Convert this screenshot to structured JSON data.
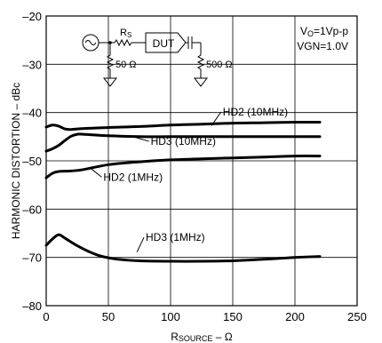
{
  "chart_data": {
    "type": "line",
    "xlabel_main": "R",
    "xlabel_sub": "SOURCE",
    "xlabel_tail": " – Ω",
    "ylabel": "HARMONIC DISTORTION – dBc",
    "xlim": [
      0,
      250
    ],
    "ylim": [
      -80,
      -20
    ],
    "xticks": [
      0,
      50,
      100,
      150,
      200,
      250
    ],
    "yticks": [
      -20,
      -30,
      -40,
      -50,
      -60,
      -70,
      -80
    ],
    "grid": true,
    "series": [
      {
        "name": "HD2 (10MHz)",
        "points": [
          [
            0,
            -43
          ],
          [
            5,
            -42.6
          ],
          [
            10,
            -42.8
          ],
          [
            15,
            -43.4
          ],
          [
            20,
            -43.5
          ],
          [
            30,
            -43.3
          ],
          [
            50,
            -43.1
          ],
          [
            75,
            -42.9
          ],
          [
            100,
            -42.6
          ],
          [
            125,
            -42.4
          ],
          [
            150,
            -42.2
          ],
          [
            175,
            -42.1
          ],
          [
            200,
            -42.0
          ],
          [
            220,
            -42.0
          ]
        ]
      },
      {
        "name": "HD3 (10MHz)",
        "points": [
          [
            0,
            -48
          ],
          [
            5,
            -47.5
          ],
          [
            10,
            -46.8
          ],
          [
            15,
            -45.8
          ],
          [
            20,
            -44.9
          ],
          [
            25,
            -44.5
          ],
          [
            30,
            -44.5
          ],
          [
            50,
            -44.8
          ],
          [
            75,
            -45.0
          ],
          [
            100,
            -45.0
          ],
          [
            150,
            -45.0
          ],
          [
            200,
            -45.0
          ],
          [
            220,
            -45.0
          ]
        ]
      },
      {
        "name": "HD2 (1MHz)",
        "points": [
          [
            0,
            -53.5
          ],
          [
            5,
            -52.6
          ],
          [
            10,
            -52.2
          ],
          [
            20,
            -52.1
          ],
          [
            30,
            -51.8
          ],
          [
            50,
            -50.8
          ],
          [
            75,
            -50.2
          ],
          [
            100,
            -49.8
          ],
          [
            125,
            -49.6
          ],
          [
            150,
            -49.4
          ],
          [
            175,
            -49.2
          ],
          [
            200,
            -49.0
          ],
          [
            220,
            -49.0
          ]
        ]
      },
      {
        "name": "HD3 (1MHz)",
        "points": [
          [
            0,
            -67.5
          ],
          [
            5,
            -66.2
          ],
          [
            10,
            -65.3
          ],
          [
            15,
            -66.0
          ],
          [
            25,
            -67.6
          ],
          [
            40,
            -69.4
          ],
          [
            55,
            -70.3
          ],
          [
            75,
            -70.7
          ],
          [
            100,
            -70.8
          ],
          [
            125,
            -70.8
          ],
          [
            150,
            -70.7
          ],
          [
            175,
            -70.4
          ],
          [
            200,
            -70.0
          ],
          [
            220,
            -69.8
          ]
        ]
      }
    ],
    "annotations": [
      {
        "text": "HD2 (10MHz)",
        "at": [
          142,
          -40.6
        ],
        "arrow_to": [
          133,
          -42.7
        ]
      },
      {
        "text": "HD3 (10MHz)",
        "at": [
          84,
          -46.7
        ],
        "arrow_to": [
          70,
          -45.0
        ]
      },
      {
        "text": "HD2 (1MHz)",
        "at": [
          46,
          -54.1
        ],
        "arrow_to": [
          36,
          -51.6
        ]
      },
      {
        "text": "HD3 (1MHz)",
        "at": [
          80,
          -66.6
        ],
        "arrow_to": [
          73,
          -68.9
        ]
      }
    ],
    "conditions": {
      "line1_main": "V",
      "line1_sub": "O",
      "line1_tail": "=1Vp-p",
      "line2": "VGN=1.0V"
    },
    "schematic": {
      "rs_main": "R",
      "rs_sub": "S",
      "r_in": "50 Ω",
      "dut": "DUT",
      "r_out": "500 Ω"
    }
  }
}
